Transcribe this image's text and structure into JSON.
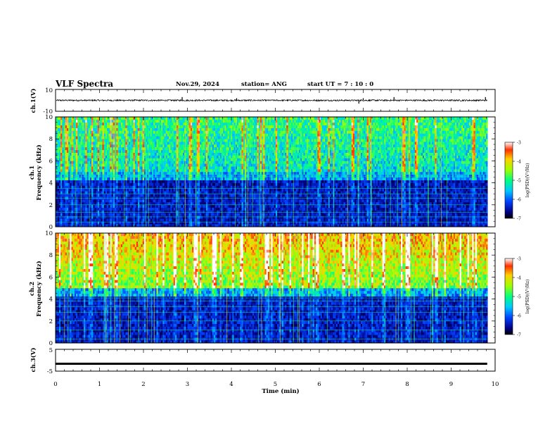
{
  "header": {
    "title": "VLF Spectra",
    "date": "Nov.29, 2024",
    "station": "station= ANG",
    "start": "start  UT =   7 : 10 : 0"
  },
  "chart_data": [
    {
      "type": "line",
      "panel": "ch1-waveform",
      "ylabel": "ch.1(V)",
      "ylim": [
        -10,
        10
      ],
      "ytick_labels": [
        "10",
        "-10"
      ],
      "baseline": 0,
      "spikes": [
        {
          "t": 2.88,
          "v": 3
        },
        {
          "t": 4.12,
          "v": 2
        },
        {
          "t": 6.9,
          "v": -3
        },
        {
          "t": 7.0,
          "v": 2
        },
        {
          "t": 7.7,
          "v": 3
        },
        {
          "t": 9.78,
          "v": 3
        }
      ]
    },
    {
      "type": "heatmap",
      "panel": "ch1-spectrogram",
      "ylabel": "ch.1",
      "ylabel2": "Frequency (kHz)",
      "ylim": [
        0,
        10
      ],
      "ytick_labels": [
        "0",
        "2",
        "4",
        "6",
        "8",
        "10"
      ],
      "colorbar": {
        "label": "log(PSD)(V²/Hz)",
        "range": [
          -7,
          -3
        ],
        "tick_labels": [
          "-3",
          "-4",
          "-5",
          "-6",
          "-7"
        ]
      }
    },
    {
      "type": "heatmap",
      "panel": "ch2-spectrogram",
      "ylabel": "ch.2",
      "ylabel2": "Frequency (kHz)",
      "ylim": [
        0,
        10
      ],
      "ytick_labels": [
        "0",
        "2",
        "4",
        "6",
        "8",
        "10"
      ],
      "colorbar": {
        "label": "log(PSD)(V²/Hz)",
        "range": [
          -7,
          -3
        ],
        "tick_labels": [
          "-3",
          "-4",
          "-5",
          "-6",
          "-7"
        ]
      }
    },
    {
      "type": "line",
      "panel": "ch3-waveform",
      "ylabel": "ch.3(V)",
      "ylim": [
        -5,
        5
      ],
      "ytick_labels": [
        "5",
        "-5"
      ],
      "baseline": -1.6
    }
  ],
  "xaxis": {
    "label": "Time (min)",
    "xlim": [
      0,
      10
    ],
    "tick_labels": [
      "0",
      "1",
      "2",
      "3",
      "4",
      "5",
      "6",
      "7",
      "8",
      "9",
      "10"
    ],
    "data_end": 9.82
  }
}
